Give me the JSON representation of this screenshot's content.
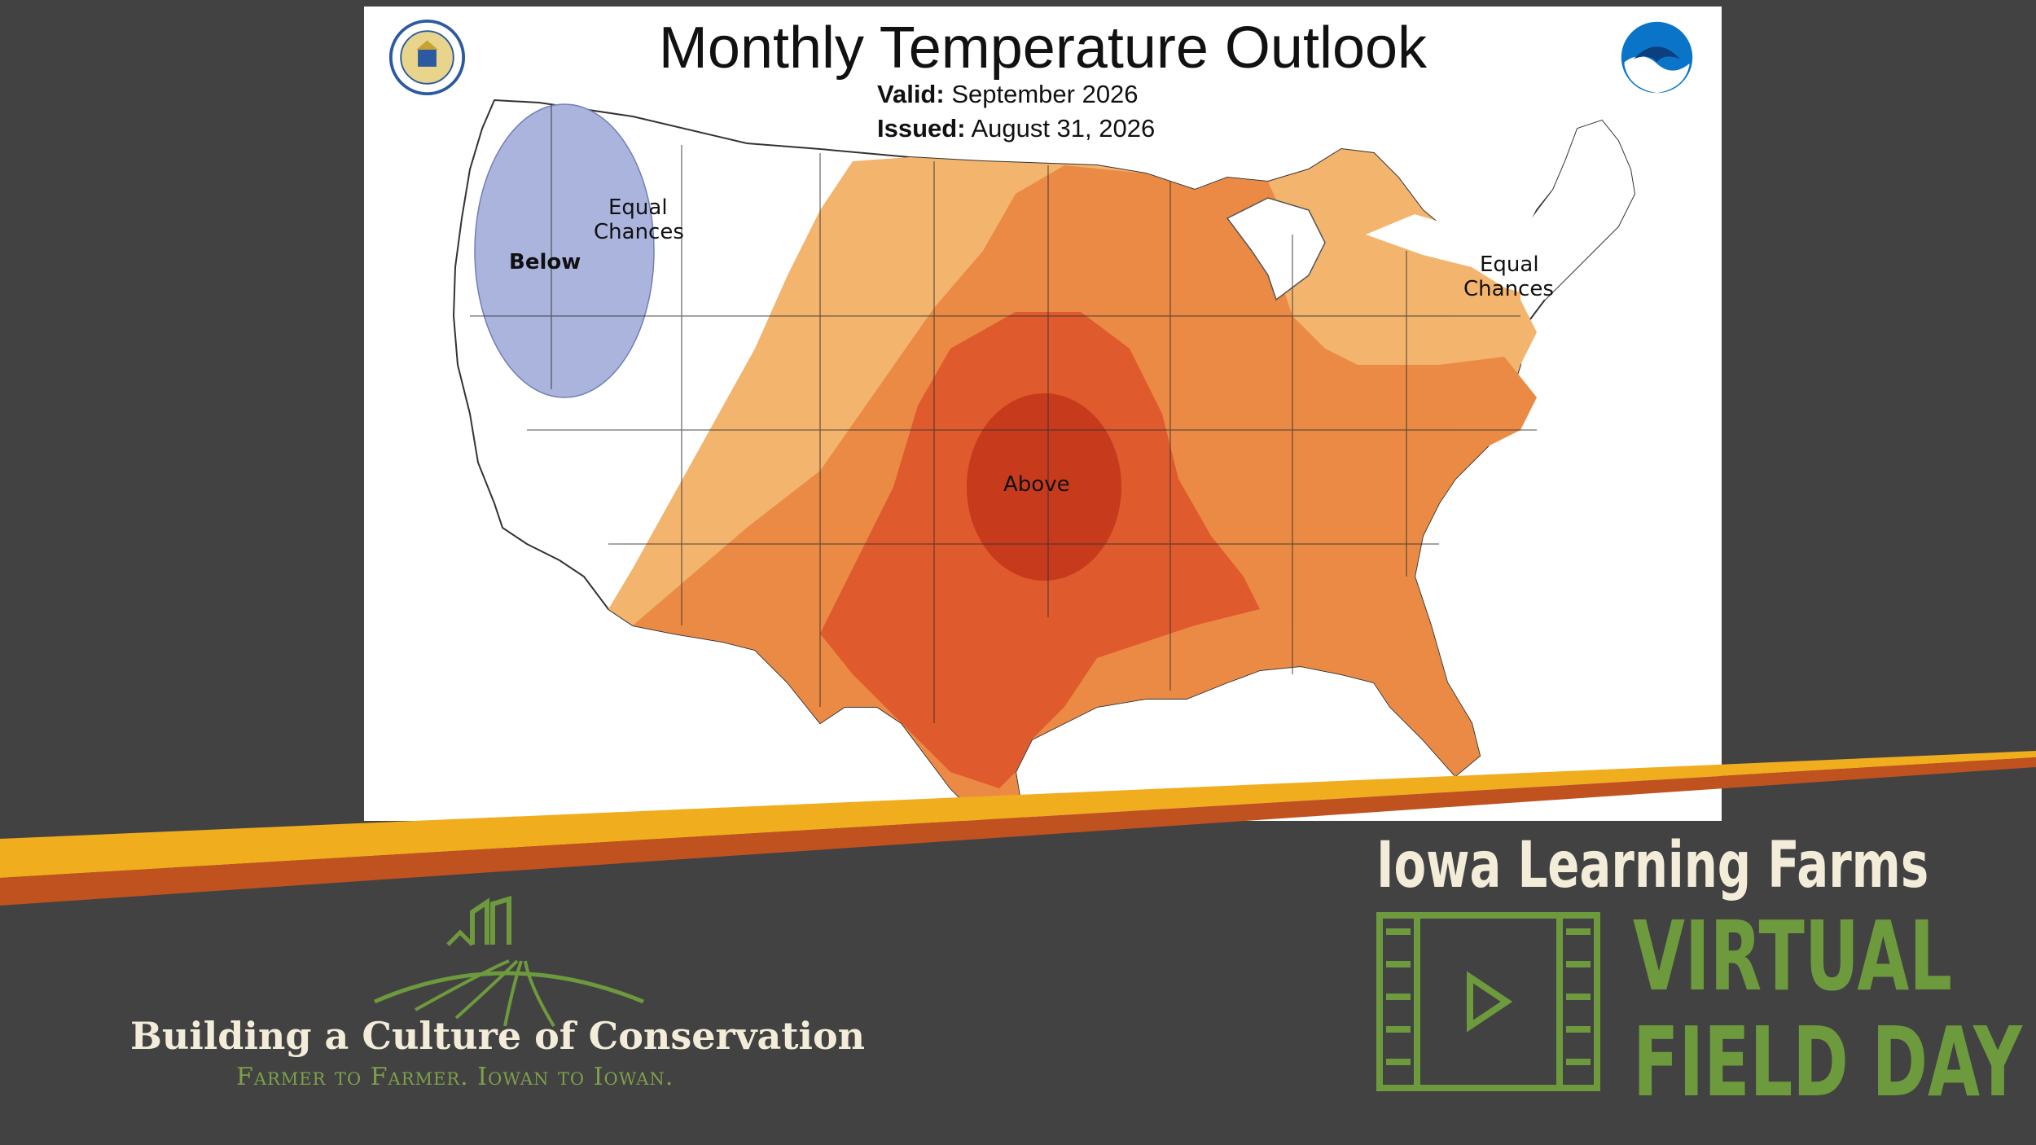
{
  "map": {
    "title": "Monthly Temperature Outlook",
    "valid_label": "Valid:",
    "valid_value": "September 2026",
    "issued_label": "Issued:",
    "issued_value": "August 31, 2026",
    "labels": {
      "equal_chances_west_1": "Equal",
      "equal_chances_west_2": "Chances",
      "below": "Below",
      "above": "Above",
      "equal_chances_east_1": "Equal",
      "equal_chances_east_2": "Chances"
    },
    "colors": {
      "below": "#aab4dc",
      "above_light": "#f3b46e",
      "above_mid": "#eb8a45",
      "above_strong": "#df5a2c",
      "above_darkest": "#c73a1c"
    },
    "icons": [
      "commerce-seal-icon",
      "noaa-logo-icon"
    ]
  },
  "branding": {
    "culture_title": "Building a Culture of Conservation",
    "culture_tagline": "Farmer to Farmer. Iowan to Iowan.",
    "ilf_title": "Iowa Learning Farms",
    "vfd_line1": "VIRTUAL",
    "vfd_line2": "FIELD DAY",
    "colors": {
      "accent_yellow": "#f0ad1e",
      "accent_rust": "#c0521f",
      "green": "#6d9a3c",
      "cream": "#f2ecd9"
    }
  }
}
